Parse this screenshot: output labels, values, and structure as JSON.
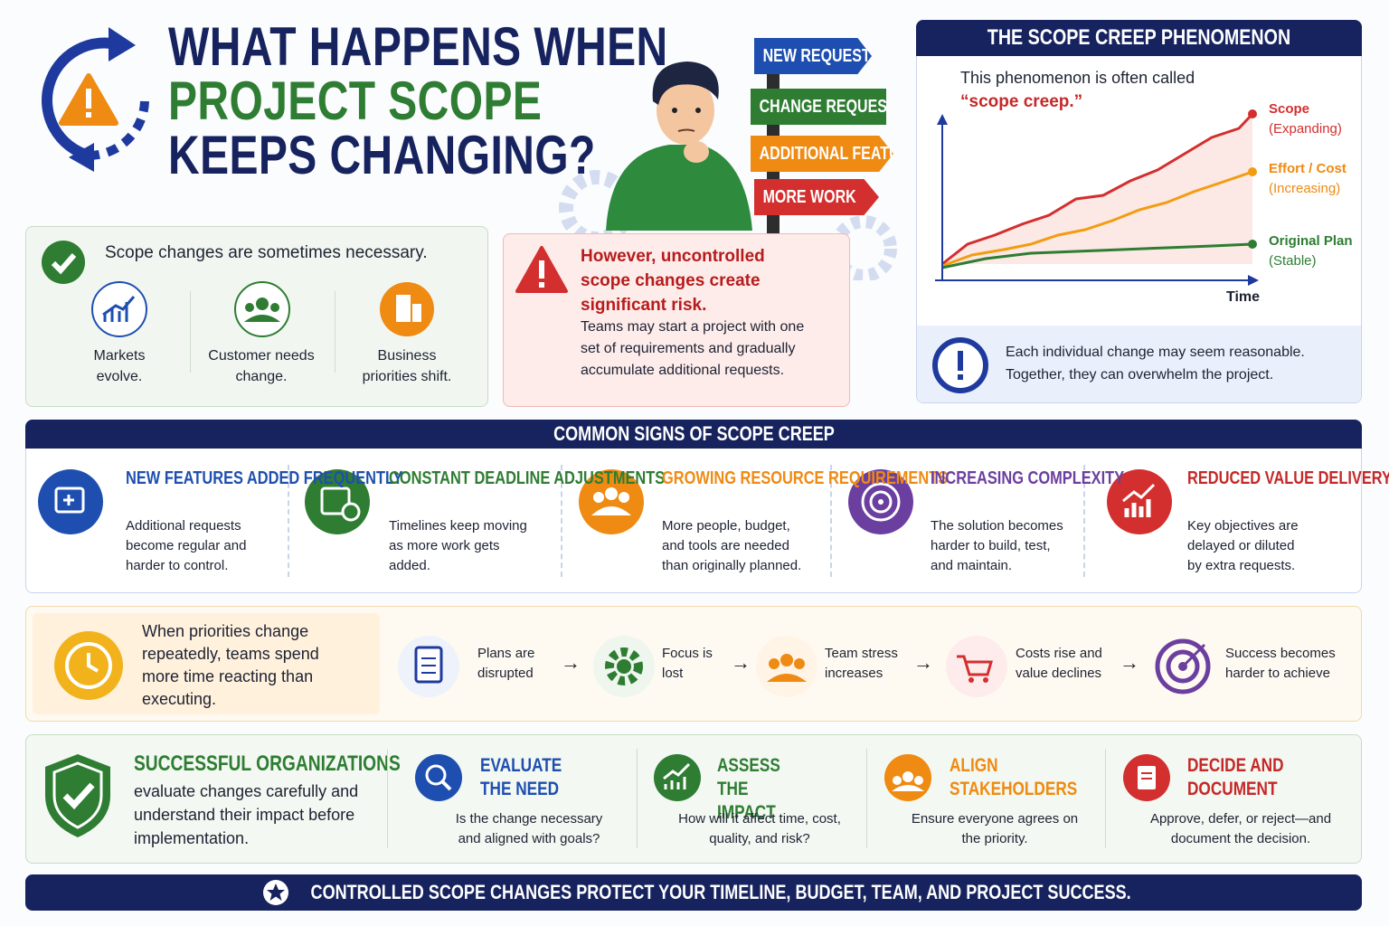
{
  "header": {
    "title_line1": "WHAT HAPPENS WHEN",
    "title_line2": "PROJECT SCOPE",
    "title_line3": "KEEPS CHANGING?"
  },
  "signposts": [
    "NEW REQUEST",
    "CHANGE REQUEST",
    "ADDITIONAL FEATURE",
    "MORE WORK"
  ],
  "necessary": {
    "heading": "Scope changes are sometimes necessary.",
    "items": [
      "Markets evolve.",
      "Customer needs change.",
      "Business priorities shift."
    ]
  },
  "risk": {
    "heading": "However, uncontrolled scope changes create significant risk.",
    "body": "Teams may start a project with one set of requirements and gradually accumulate additional requests."
  },
  "phenomenon": {
    "title": "THE SCOPE CREEP PHENOMENON",
    "intro": "This phenomenon is often called",
    "quote": "“scope creep.”",
    "x_label": "Time",
    "series": [
      {
        "name": "Scope",
        "note": "(Expanding)",
        "color": "#d32f2f"
      },
      {
        "name": "Effort / Cost",
        "note": "(Increasing)",
        "color": "#f39c12"
      },
      {
        "name": "Original Plan",
        "note": "(Stable)",
        "color": "#2e7d32"
      }
    ],
    "note": "Each individual change may seem reasonable. Together, they can overwhelm the project."
  },
  "signs": {
    "title": "COMMON SIGNS OF SCOPE CREEP",
    "items": [
      {
        "title": "NEW FEATURES ADDED FREQUENTLY",
        "body": "Additional requests become regular and harder to control."
      },
      {
        "title": "CONSTANT DEADLINE ADJUSTMENTS",
        "body": "Timelines keep moving as more work gets added."
      },
      {
        "title": "GROWING RESOURCE REQUIREMENTS",
        "body": "More people, budget, and tools are needed than originally planned."
      },
      {
        "title": "INCREASING COMPLEXITY",
        "body": "The solution becomes harder to build, test, and maintain."
      },
      {
        "title": "REDUCED VALUE DELIVERY",
        "body": "Key objectives are delayed or diluted by extra requests."
      }
    ]
  },
  "impact": {
    "lead": "When priorities change repeatedly, teams spend more time reacting than executing.",
    "steps": [
      "Plans are disrupted",
      "Focus is lost",
      "Team stress increases",
      "Costs rise and value declines",
      "Success becomes harder to achieve"
    ]
  },
  "success": {
    "heading": "SUCCESSFUL ORGANIZATIONS",
    "body": "evaluate changes carefully and understand their impact before implementation.",
    "steps": [
      {
        "title": "EVALUATE THE NEED",
        "body": "Is the change necessary and aligned with goals?"
      },
      {
        "title": "ASSESS THE IMPACT",
        "body": "How will it affect time, cost, quality, and risk?"
      },
      {
        "title": "ALIGN STAKEHOLDERS",
        "body": "Ensure everyone agrees on the priority."
      },
      {
        "title": "DECIDE AND DOCUMENT",
        "body": "Approve, defer, or reject—and document the decision."
      }
    ]
  },
  "footer": "CONTROLLED SCOPE CHANGES PROTECT YOUR TIMELINE, BUDGET, TEAM, AND PROJECT SUCCESS."
}
